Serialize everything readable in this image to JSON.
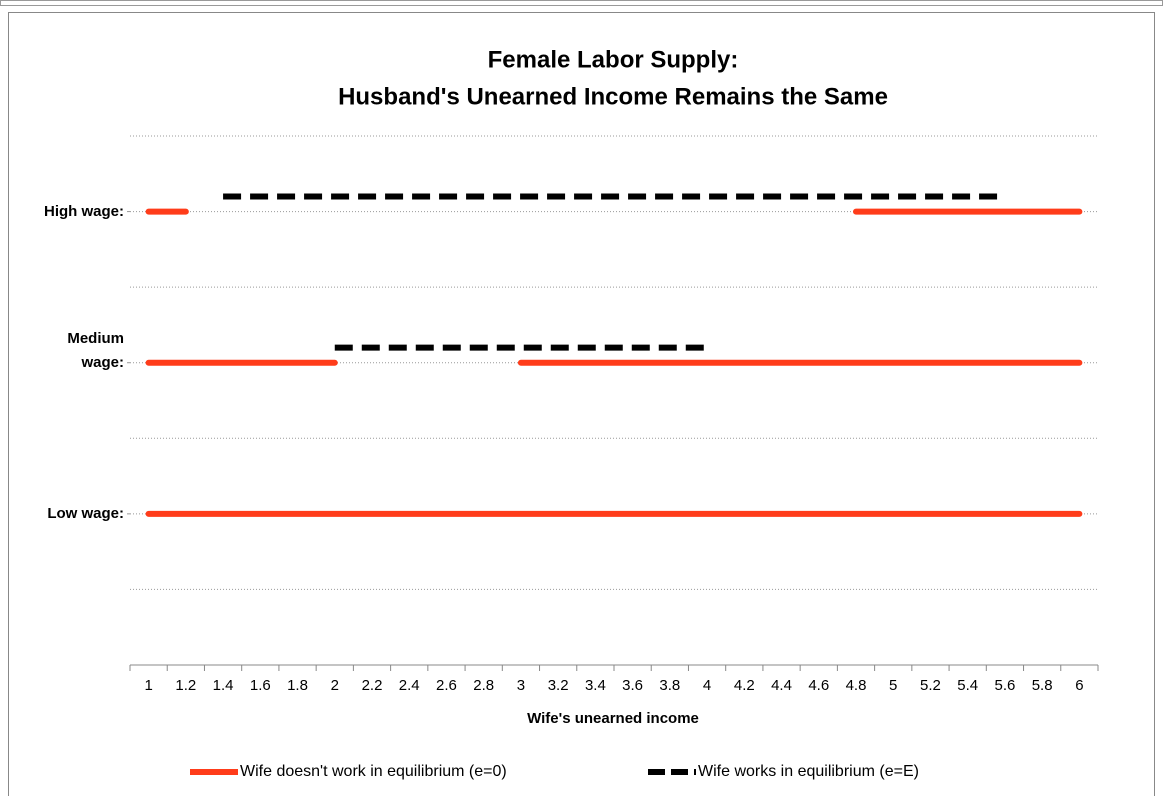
{
  "chart_data": {
    "type": "line",
    "title": [
      "Female Labor Supply:",
      "Husband's Unearned Income Remains the Same"
    ],
    "x_label": "Wife's unearned income",
    "categories": [
      "1",
      "1.2",
      "1.4",
      "1.6",
      "1.8",
      "2",
      "2.2",
      "2.4",
      "2.6",
      "2.8",
      "3",
      "3.2",
      "3.4",
      "3.6",
      "3.8",
      "4",
      "4.2",
      "4.4",
      "4.6",
      "4.8",
      "5",
      "5.2",
      "5.4",
      "5.6",
      "5.8",
      "6"
    ],
    "ylim": [
      0,
      7
    ],
    "yticks": [
      {
        "value": 2,
        "label": "Low wage:"
      },
      {
        "value": 4,
        "label": "Medium wage:"
      },
      {
        "value": 6,
        "label": "High wage:"
      }
    ],
    "gridlines": [
      1,
      2,
      3,
      4,
      5,
      6,
      7
    ],
    "series": [
      {
        "name": "Wife doesn't work in equilibrium (e=0)",
        "color": "#ff3c1a",
        "line_style": "solid",
        "lines": [
          [
            6,
            6,
            null,
            null,
            null,
            null,
            null,
            null,
            null,
            null,
            null,
            null,
            null,
            null,
            null,
            null,
            null,
            null,
            null,
            6,
            6,
            6,
            6,
            6,
            6,
            6
          ],
          [
            4,
            4,
            4,
            4,
            4,
            4,
            null,
            null,
            null,
            null,
            4,
            4,
            4,
            4,
            4,
            4,
            4,
            4,
            4,
            4,
            4,
            4,
            4,
            4,
            4,
            4
          ],
          [
            2,
            2,
            2,
            2,
            2,
            2,
            2,
            2,
            2,
            2,
            2,
            2,
            2,
            2,
            2,
            2,
            2,
            2,
            2,
            2,
            2,
            2,
            2,
            2,
            2,
            2
          ]
        ]
      },
      {
        "name": "Wife works in equilibrium (e=E)",
        "color": "#000000",
        "line_style": "dashed",
        "lines": [
          [
            null,
            null,
            6.2,
            6.2,
            6.2,
            6.2,
            6.2,
            6.2,
            6.2,
            6.2,
            6.2,
            6.2,
            6.2,
            6.2,
            6.2,
            6.2,
            6.2,
            6.2,
            6.2,
            6.2,
            6.2,
            6.2,
            6.2,
            6.2,
            null,
            null
          ],
          [
            null,
            null,
            null,
            null,
            null,
            4.2,
            4.2,
            4.2,
            4.2,
            4.2,
            4.2,
            4.2,
            4.2,
            4.2,
            4.2,
            4.2,
            null,
            null,
            null,
            null,
            null,
            null,
            null,
            null,
            null,
            null
          ]
        ]
      }
    ]
  }
}
